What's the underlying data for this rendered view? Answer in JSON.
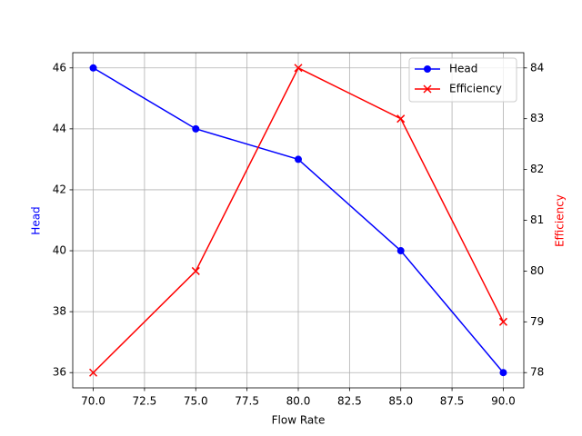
{
  "chart_data": {
    "type": "line",
    "xlabel": "Flow Rate",
    "ylabel": "Head",
    "y2label": "Efficiency",
    "x": [
      70,
      75,
      80,
      85,
      90
    ],
    "series": [
      {
        "name": "Head",
        "color": "blue",
        "marker": "o",
        "axis": "y",
        "values": [
          46,
          44,
          43,
          40,
          36
        ]
      },
      {
        "name": "Efficiency",
        "color": "red",
        "marker": "x",
        "axis": "y2",
        "values": [
          78,
          80,
          84,
          83,
          79
        ]
      }
    ],
    "xlim": [
      69,
      91
    ],
    "xticks": [
      {
        "value": 70,
        "label": "70.0"
      },
      {
        "value": 72.5,
        "label": "72.5"
      },
      {
        "value": 75,
        "label": "75.0"
      },
      {
        "value": 77.5,
        "label": "77.5"
      },
      {
        "value": 80,
        "label": "80.0"
      },
      {
        "value": 82.5,
        "label": "82.5"
      },
      {
        "value": 85,
        "label": "85.0"
      },
      {
        "value": 87.5,
        "label": "87.5"
      },
      {
        "value": 90,
        "label": "90.0"
      }
    ],
    "ylim": [
      35.5,
      46.5
    ],
    "yticks": [
      36,
      38,
      40,
      42,
      44,
      46
    ],
    "y2lim": [
      77.7,
      84.3
    ],
    "y2ticks": [
      78,
      79,
      80,
      81,
      82,
      83,
      84
    ],
    "grid": true,
    "legend": "upper right"
  }
}
